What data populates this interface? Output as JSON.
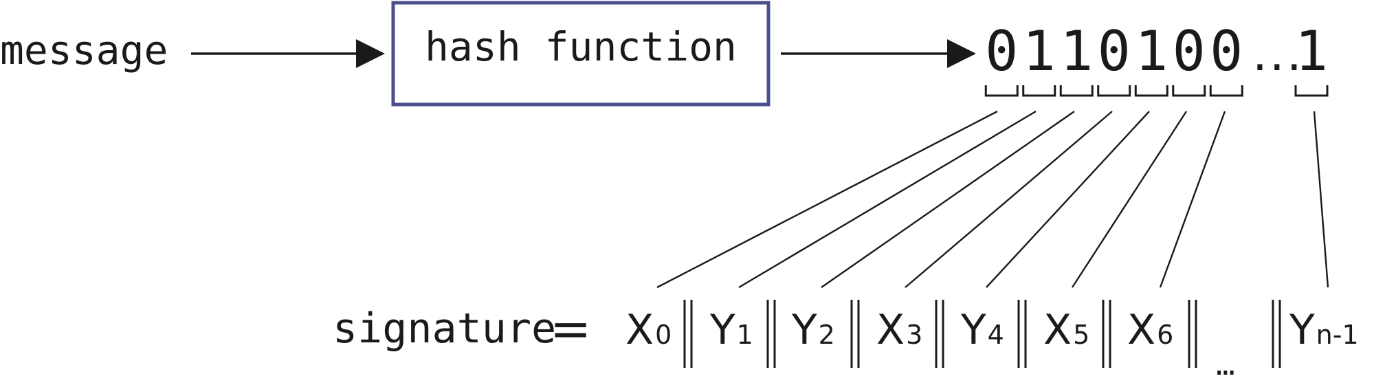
{
  "message_label": "message",
  "hash_box_label": "hash function",
  "hash_box_border_color": "#4a4e8c",
  "hash_output": {
    "bits": [
      "0",
      "1",
      "1",
      "0",
      "1",
      "0",
      "0"
    ],
    "ellipsis": "...",
    "last_bit": "1"
  },
  "signature_label": "signature",
  "equals_sign": "=",
  "signature_parts": [
    {
      "letter": "X",
      "sub": "0"
    },
    {
      "letter": "Y",
      "sub": "1"
    },
    {
      "letter": "Y",
      "sub": "2"
    },
    {
      "letter": "X",
      "sub": "3"
    },
    {
      "letter": "Y",
      "sub": "4"
    },
    {
      "letter": "X",
      "sub": "5"
    },
    {
      "letter": "X",
      "sub": "6"
    }
  ],
  "signature_ellipsis": "...",
  "signature_last": {
    "letter": "Y",
    "sub": "n-1"
  }
}
